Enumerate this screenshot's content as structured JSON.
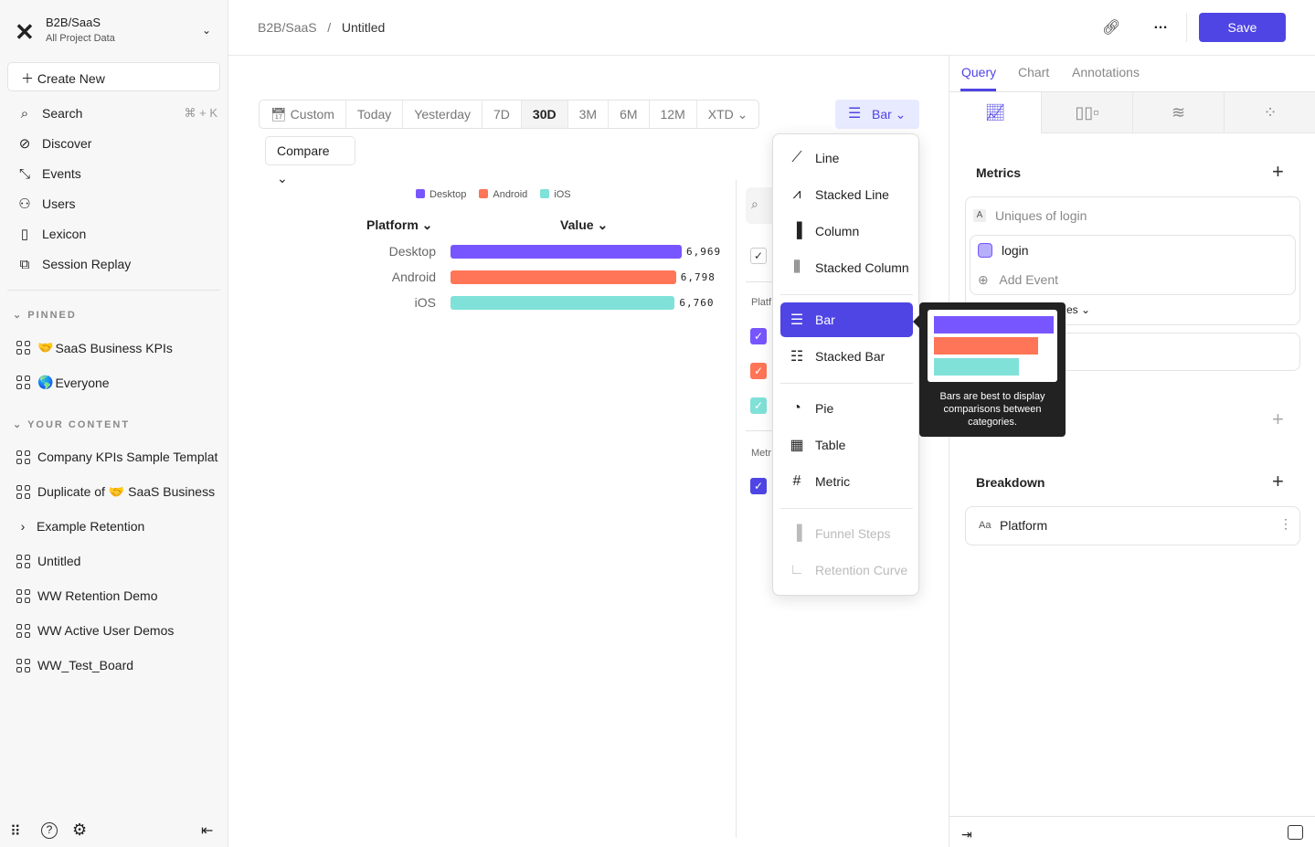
{
  "sidebar": {
    "project_name": "B2B/SaaS",
    "project_sub": "All Project Data",
    "create_new": "Create New",
    "nav": [
      {
        "label": "Search",
        "icon": "search-icon",
        "shortcut": "⌘ + K"
      },
      {
        "label": "Discover",
        "icon": "compass-icon"
      },
      {
        "label": "Events",
        "icon": "cursor-click-icon"
      },
      {
        "label": "Users",
        "icon": "users-icon"
      },
      {
        "label": "Lexicon",
        "icon": "book-icon"
      },
      {
        "label": "Session Replay",
        "icon": "play-icon"
      }
    ],
    "pinned_title": "PINNED",
    "pinned": [
      {
        "emoji": "🤝",
        "label": "SaaS Business KPIs"
      },
      {
        "emoji": "🌎",
        "label": "Everyone"
      }
    ],
    "content_title": "YOUR CONTENT",
    "content": [
      "Company KPIs Sample Templat",
      "Duplicate of 🤝 SaaS Business",
      "Example Retention",
      "Untitled",
      "WW Retention Demo",
      "WW Active User Demos",
      "WW_Test_Board"
    ]
  },
  "header": {
    "breadcrumb": [
      "B2B/SaaS",
      "/",
      "Untitled"
    ],
    "save": "Save",
    "more": "…"
  },
  "toolbar": {
    "date_ranges": [
      "Custom",
      "Today",
      "Yesterday",
      "7D",
      "30D",
      "3M",
      "6M",
      "12M",
      "XTD"
    ],
    "active_range": "30D",
    "compare": "Compare",
    "chart_type": "Bar"
  },
  "chart_data": {
    "type": "bar",
    "orientation": "horizontal",
    "categories": [
      "Desktop",
      "Android",
      "iOS"
    ],
    "values": [
      6969,
      6798,
      6760
    ],
    "value_labels": [
      "6,969",
      "6,798",
      "6,760"
    ],
    "colors": [
      "#7856ff",
      "#ff7557",
      "#80e1d9"
    ],
    "legend": [
      "Desktop",
      "Android",
      "iOS"
    ],
    "legend_position": "top",
    "column_headers": [
      "Platform",
      "Value"
    ]
  },
  "middle": {
    "platform_label": "Platf",
    "metric_label": "Metr"
  },
  "chart_menu": {
    "items": [
      {
        "label": "Line",
        "icon": "line-chart-icon"
      },
      {
        "label": "Stacked Line",
        "icon": "stacked-line-icon"
      },
      {
        "label": "Column",
        "icon": "column-chart-icon"
      },
      {
        "label": "Stacked Column",
        "icon": "stacked-column-icon"
      },
      {
        "label": "Bar",
        "icon": "bar-chart-icon",
        "selected": true
      },
      {
        "label": "Stacked Bar",
        "icon": "stacked-bar-icon"
      },
      {
        "label": "Pie",
        "icon": "pie-chart-icon"
      },
      {
        "label": "Table",
        "icon": "table-icon"
      },
      {
        "label": "Metric",
        "icon": "hash-icon"
      },
      {
        "label": "Funnel Steps",
        "icon": "funnel-icon",
        "disabled": true
      },
      {
        "label": "Retention Curve",
        "icon": "retention-icon",
        "disabled": true
      }
    ],
    "tooltip": "Bars are best to display comparisons between categories."
  },
  "right_panel": {
    "tabs": [
      "Query",
      "Chart",
      "Annotations"
    ],
    "active_tab": "Query",
    "metrics_title": "Metrics",
    "metric_letter": "A",
    "metric_name": "Uniques of login",
    "event": "login",
    "add_event": "Add Event",
    "partial_text": "es",
    "breakdown_title": "Breakdown",
    "breakdown_type": "Aa",
    "breakdown_value": "Platform"
  },
  "colors": {
    "accent": "#4f45e4"
  }
}
